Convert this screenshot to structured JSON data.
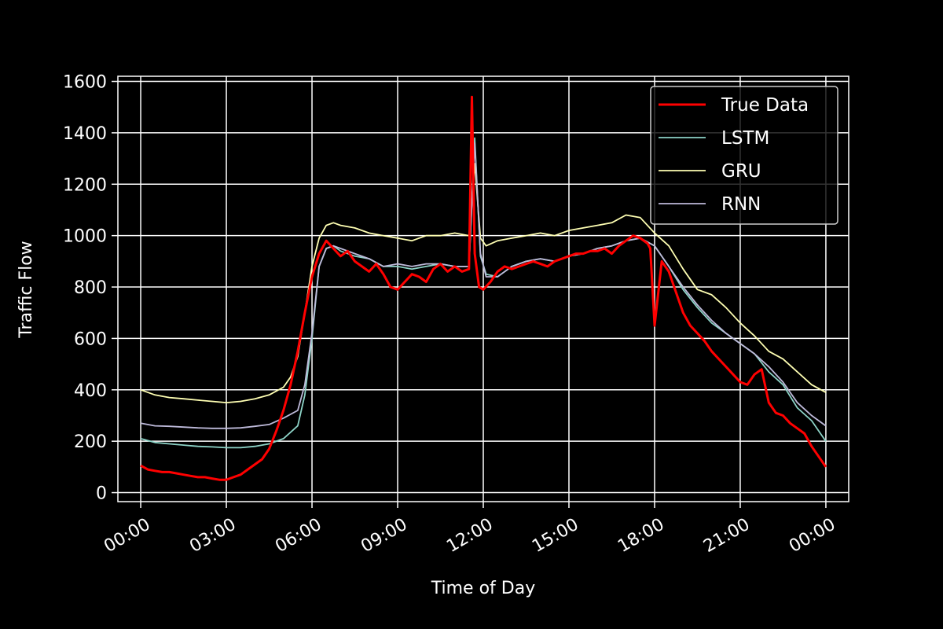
{
  "chart_data": {
    "type": "line",
    "title": "",
    "xlabel": "Time of Day",
    "ylabel": "Traffic Flow",
    "xlim": [
      -0.8,
      24.8
    ],
    "ylim": [
      -35,
      1620
    ],
    "x_ticks": [
      {
        "value": 0,
        "label": "00:00"
      },
      {
        "value": 3,
        "label": "03:00"
      },
      {
        "value": 6,
        "label": "06:00"
      },
      {
        "value": 9,
        "label": "09:00"
      },
      {
        "value": 12,
        "label": "12:00"
      },
      {
        "value": 15,
        "label": "15:00"
      },
      {
        "value": 18,
        "label": "18:00"
      },
      {
        "value": 21,
        "label": "21:00"
      },
      {
        "value": 24,
        "label": "00:00"
      }
    ],
    "y_ticks": [
      0,
      200,
      400,
      600,
      800,
      1000,
      1200,
      1400,
      1600
    ],
    "grid": true,
    "legend_position": "top-right",
    "x_unit": "hours",
    "series": [
      {
        "name": "True Data",
        "color": "#ff0000",
        "x": [
          0,
          0.25,
          0.5,
          0.75,
          1,
          1.25,
          1.5,
          1.75,
          2,
          2.25,
          2.5,
          2.75,
          3,
          3.25,
          3.5,
          3.75,
          4,
          4.25,
          4.5,
          4.75,
          5,
          5.25,
          5.5,
          5.75,
          6,
          6.25,
          6.5,
          6.75,
          7,
          7.25,
          7.5,
          7.75,
          8,
          8.25,
          8.5,
          8.75,
          9,
          9.25,
          9.5,
          9.75,
          10,
          10.25,
          10.5,
          10.75,
          11,
          11.25,
          11.5,
          11.6,
          11.7,
          11.85,
          12,
          12.25,
          12.5,
          12.75,
          13,
          13.25,
          13.5,
          13.75,
          14,
          14.25,
          14.5,
          14.75,
          15,
          15.25,
          15.5,
          15.75,
          16,
          16.25,
          16.5,
          16.75,
          17,
          17.25,
          17.5,
          17.75,
          17.85,
          18,
          18.25,
          18.5,
          18.75,
          19,
          19.25,
          19.5,
          19.75,
          20,
          20.25,
          20.5,
          20.75,
          21,
          21.25,
          21.5,
          21.75,
          22,
          22.25,
          22.5,
          22.75,
          23,
          23.25,
          23.5,
          23.75,
          24
        ],
        "y": [
          105,
          90,
          85,
          80,
          80,
          75,
          70,
          65,
          60,
          60,
          55,
          50,
          50,
          60,
          70,
          90,
          110,
          130,
          170,
          240,
          320,
          420,
          550,
          700,
          840,
          930,
          980,
          950,
          920,
          940,
          900,
          880,
          860,
          890,
          850,
          800,
          790,
          820,
          850,
          840,
          820,
          870,
          890,
          860,
          880,
          860,
          870,
          1540,
          930,
          800,
          790,
          820,
          860,
          880,
          870,
          880,
          890,
          900,
          890,
          880,
          900,
          910,
          920,
          930,
          930,
          940,
          940,
          950,
          930,
          960,
          980,
          1000,
          990,
          970,
          950,
          650,
          900,
          860,
          780,
          700,
          650,
          620,
          590,
          550,
          520,
          490,
          460,
          430,
          420,
          460,
          480,
          350,
          310,
          300,
          270,
          250,
          230,
          180,
          140,
          100
        ]
      },
      {
        "name": "LSTM",
        "color": "#8dd3c7",
        "x": [
          0,
          0.5,
          1,
          1.5,
          2,
          2.5,
          3,
          3.5,
          4,
          4.5,
          5,
          5.5,
          5.75,
          6,
          6.25,
          6.5,
          6.75,
          7,
          7.5,
          8,
          8.5,
          9,
          9.5,
          10,
          10.5,
          11,
          11.5,
          11.7,
          11.9,
          12.1,
          12.5,
          13,
          13.5,
          14,
          14.5,
          15,
          15.5,
          16,
          16.5,
          17,
          17.5,
          18,
          18.5,
          19,
          19.5,
          20,
          20.5,
          21,
          21.5,
          22,
          22.5,
          23,
          23.5,
          24
        ],
        "y": [
          210,
          195,
          190,
          185,
          180,
          178,
          175,
          175,
          180,
          190,
          210,
          260,
          380,
          600,
          880,
          950,
          960,
          940,
          920,
          910,
          880,
          880,
          870,
          880,
          890,
          880,
          880,
          1380,
          920,
          850,
          840,
          880,
          900,
          910,
          900,
          920,
          930,
          950,
          960,
          980,
          990,
          960,
          880,
          790,
          720,
          660,
          620,
          580,
          540,
          470,
          420,
          330,
          280,
          200
        ]
      },
      {
        "name": "GRU",
        "color": "#ffffb3",
        "x": [
          0,
          0.5,
          1,
          1.5,
          2,
          2.5,
          3,
          3.5,
          4,
          4.5,
          5,
          5.25,
          5.5,
          5.75,
          6,
          6.25,
          6.5,
          6.75,
          7,
          7.5,
          8,
          8.5,
          9,
          9.5,
          10,
          10.5,
          11,
          11.5,
          11.7,
          11.9,
          12.1,
          12.5,
          13,
          13.5,
          14,
          14.5,
          15,
          15.5,
          16,
          16.5,
          17,
          17.5,
          18,
          18.5,
          19,
          19.5,
          20,
          20.5,
          21,
          21.5,
          22,
          22.5,
          23,
          23.5,
          24
        ],
        "y": [
          400,
          380,
          370,
          365,
          360,
          355,
          350,
          355,
          365,
          380,
          410,
          450,
          530,
          700,
          880,
          990,
          1040,
          1050,
          1040,
          1030,
          1010,
          1000,
          990,
          980,
          1000,
          1000,
          1010,
          1000,
          1280,
          990,
          960,
          980,
          990,
          1000,
          1010,
          1000,
          1020,
          1030,
          1040,
          1050,
          1080,
          1070,
          1010,
          960,
          870,
          790,
          770,
          720,
          660,
          610,
          550,
          520,
          470,
          420,
          390
        ]
      },
      {
        "name": "RNN",
        "color": "#bebada",
        "x": [
          0,
          0.5,
          1,
          1.5,
          2,
          2.5,
          3,
          3.5,
          4,
          4.5,
          5,
          5.5,
          5.75,
          6,
          6.25,
          6.5,
          6.75,
          7,
          7.5,
          8,
          8.5,
          9,
          9.5,
          10,
          10.5,
          11,
          11.5,
          11.7,
          11.9,
          12.1,
          12.5,
          13,
          13.5,
          14,
          14.5,
          15,
          15.5,
          16,
          16.5,
          17,
          17.5,
          18,
          18.5,
          19,
          19.5,
          20,
          20.5,
          21,
          21.5,
          22,
          22.5,
          23,
          23.5,
          24
        ],
        "y": [
          270,
          260,
          258,
          255,
          252,
          250,
          250,
          252,
          258,
          265,
          290,
          320,
          420,
          620,
          880,
          950,
          960,
          950,
          930,
          910,
          880,
          890,
          880,
          890,
          890,
          880,
          880,
          1360,
          930,
          840,
          840,
          880,
          900,
          910,
          900,
          920,
          930,
          950,
          960,
          980,
          990,
          960,
          880,
          800,
          730,
          670,
          620,
          580,
          540,
          490,
          430,
          350,
          300,
          260
        ]
      }
    ]
  }
}
